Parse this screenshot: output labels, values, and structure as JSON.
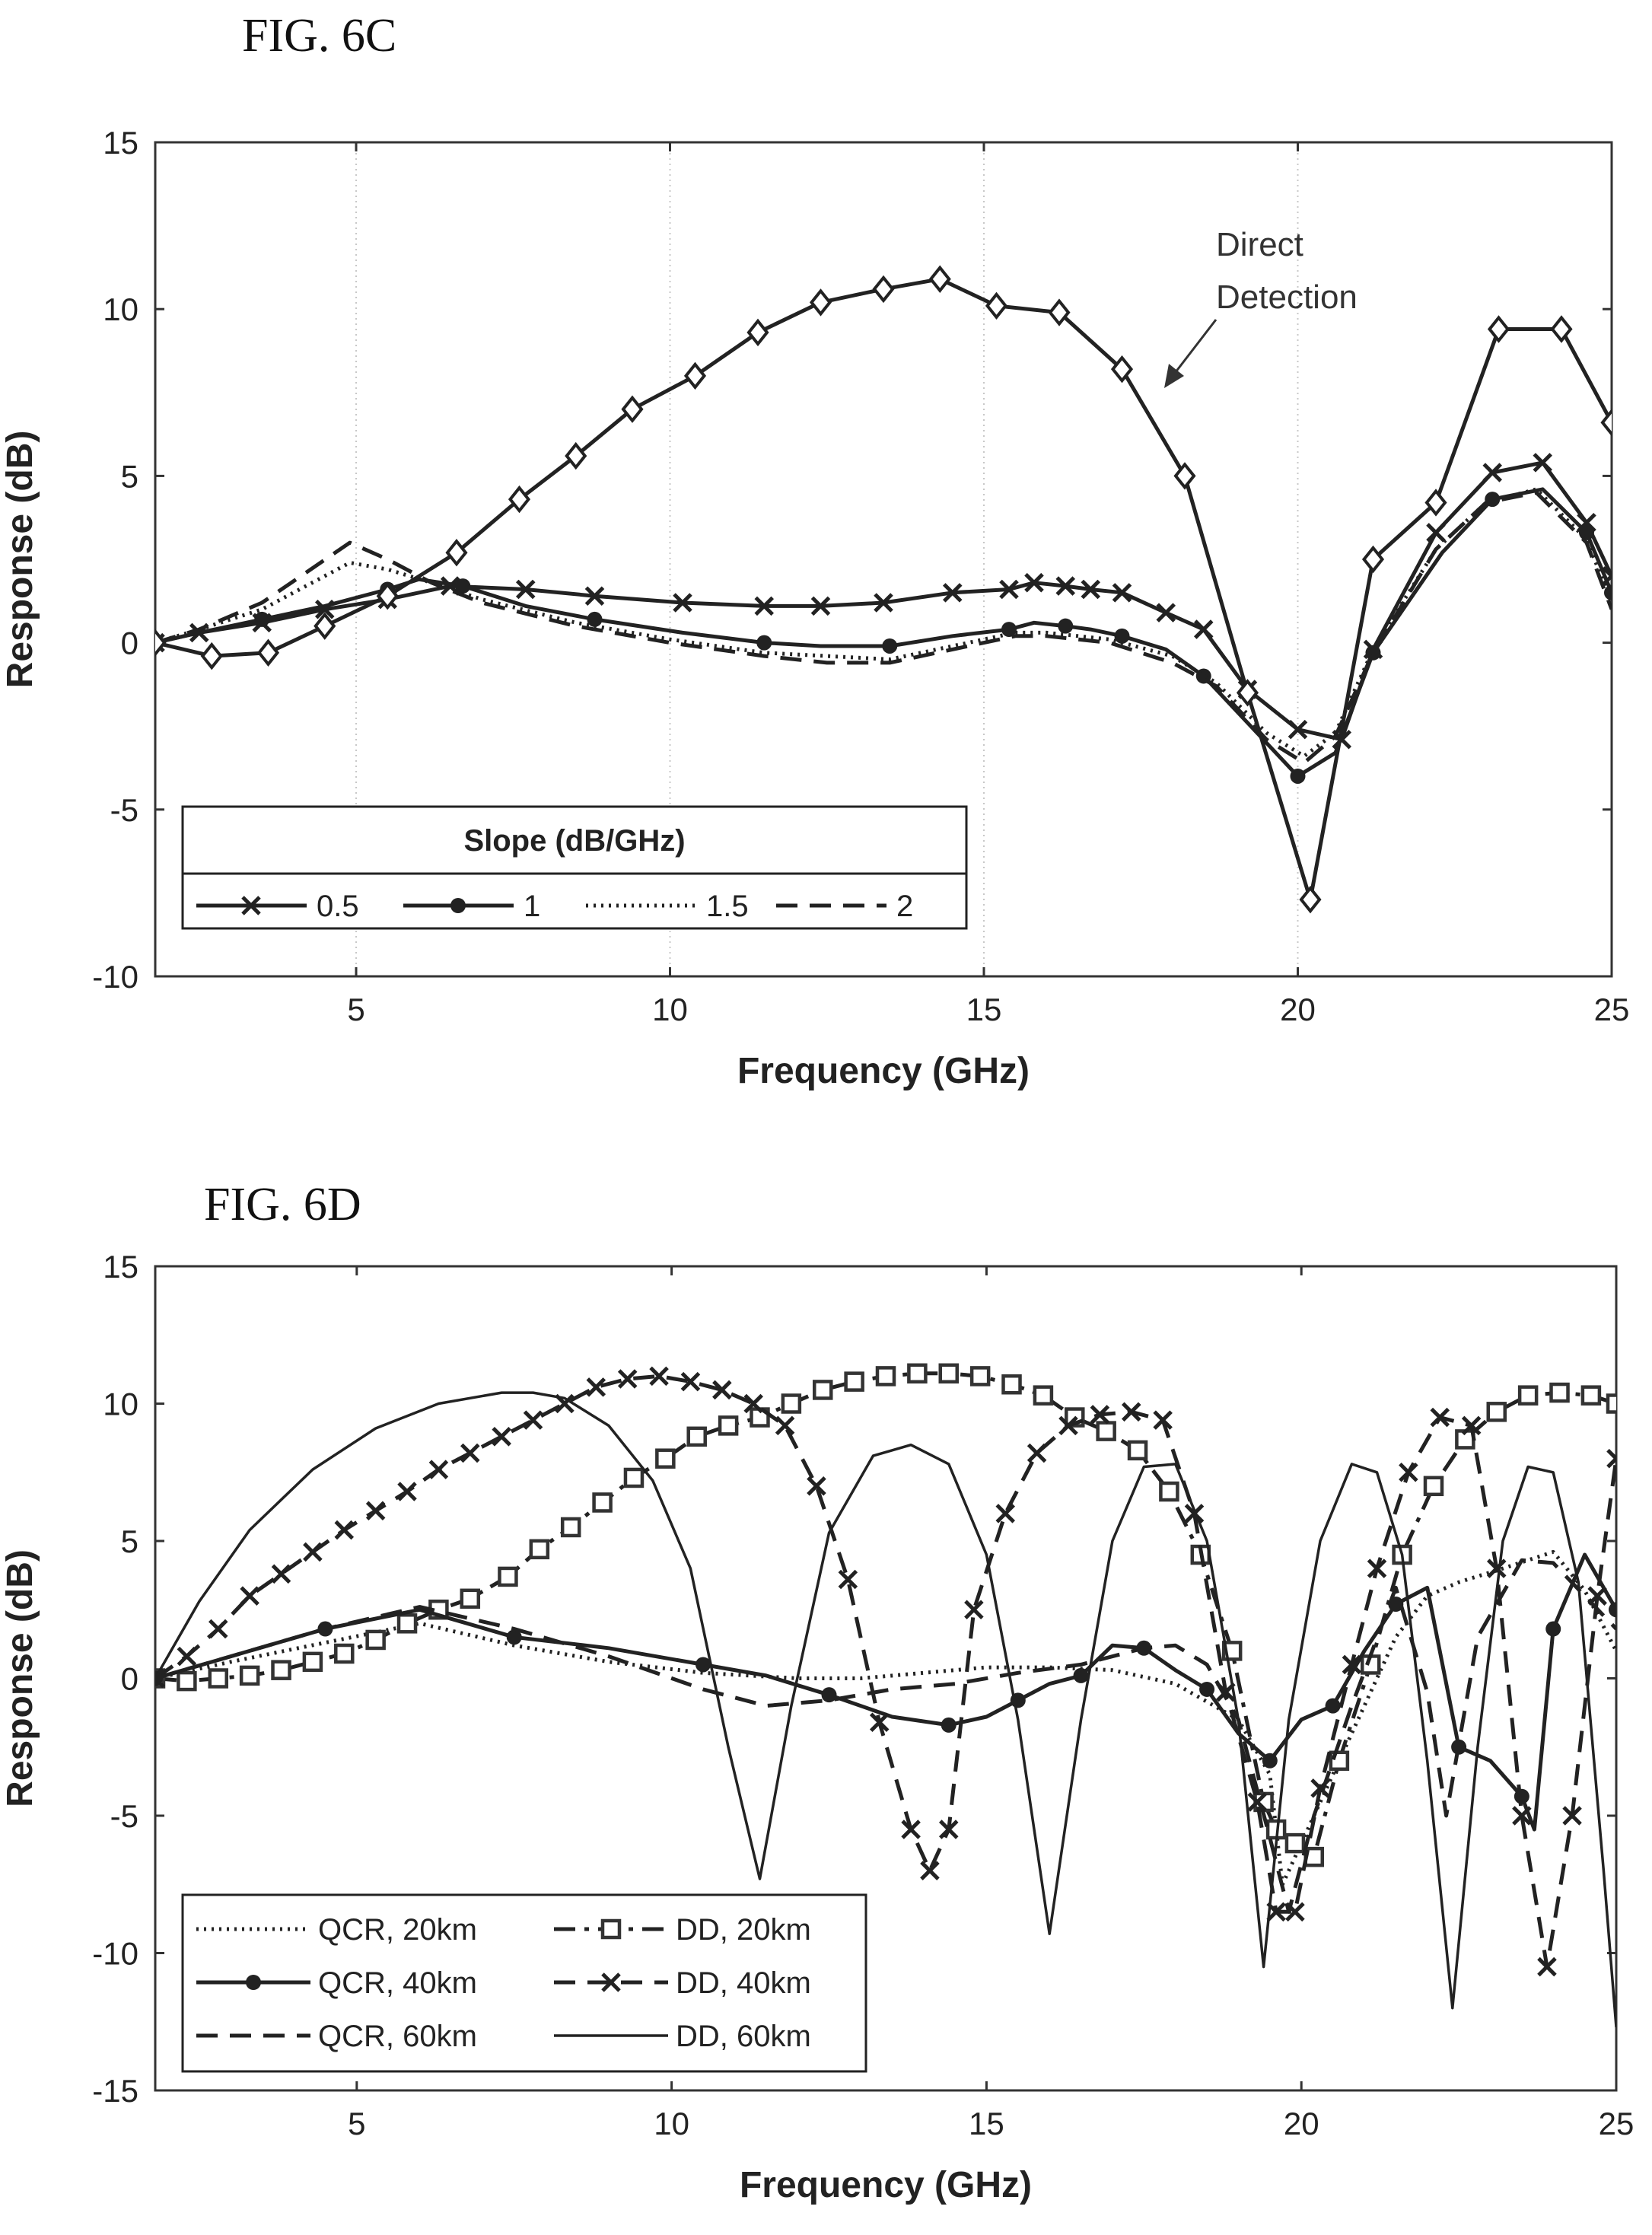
{
  "figures": {
    "c_label": "FIG. 6C",
    "d_label": "FIG. 6D"
  },
  "chart_data": [
    {
      "type": "line",
      "title": "",
      "xlabel": "Frequency (GHz)",
      "ylabel": "Response (dB)",
      "xlim": [
        1.8,
        25
      ],
      "ylim": [
        -10,
        15
      ],
      "xticks": [
        5,
        10,
        15,
        20,
        25
      ],
      "yticks": [
        -10,
        -5,
        0,
        5,
        10,
        15
      ],
      "grid": "vertical dotted",
      "legend": {
        "title": "Slope (dB/GHz)",
        "placement": "lower-left",
        "entries": [
          "0.5",
          "1",
          "1.5",
          "2"
        ]
      },
      "annotation": {
        "lines": [
          "Direct",
          "Detection"
        ]
      },
      "series": [
        {
          "name": "0.5",
          "style": "solid-x",
          "x": [
            1.8,
            2.5,
            3.5,
            4.5,
            5.5,
            6.5,
            7.7,
            8.8,
            10.2,
            11.5,
            12.4,
            13.4,
            14.5,
            15.4,
            15.8,
            16.3,
            16.7,
            17.2,
            17.9,
            18.5,
            19.2,
            20.0,
            20.7,
            21.2,
            22.2,
            23.1,
            23.9,
            24.6,
            25.0
          ],
          "y": [
            0,
            0.3,
            0.6,
            1.0,
            1.3,
            1.7,
            1.6,
            1.4,
            1.2,
            1.1,
            1.1,
            1.2,
            1.5,
            1.6,
            1.8,
            1.7,
            1.6,
            1.5,
            0.9,
            0.4,
            -1.4,
            -2.6,
            -2.9,
            -0.2,
            3.3,
            5.1,
            5.4,
            3.6,
            2.0
          ]
        },
        {
          "name": "1",
          "style": "solid-dot",
          "x": [
            1.8,
            2.5,
            3.5,
            4.5,
            5.5,
            6.0,
            6.7,
            7.7,
            8.8,
            10.2,
            11.5,
            12.4,
            13.5,
            14.5,
            15.4,
            15.8,
            16.3,
            16.7,
            17.2,
            17.9,
            18.5,
            19.2,
            20.0,
            20.6,
            21.2,
            22.3,
            23.1,
            23.9,
            24.6,
            25.0
          ],
          "y": [
            0,
            0.3,
            0.7,
            1.1,
            1.6,
            1.9,
            1.7,
            1.1,
            0.7,
            0.3,
            0.0,
            -0.1,
            -0.1,
            0.2,
            0.4,
            0.6,
            0.5,
            0.4,
            0.2,
            -0.2,
            -1.0,
            -2.4,
            -4.0,
            -3.3,
            -0.3,
            2.7,
            4.3,
            4.6,
            3.3,
            1.5
          ]
        },
        {
          "name": "1.5",
          "style": "dotted",
          "x": [
            1.8,
            2.5,
            3.5,
            4.9,
            5.5,
            6.2,
            7.0,
            8.5,
            10.0,
            11.5,
            12.5,
            13.5,
            14.5,
            15.5,
            16.0,
            16.5,
            17.0,
            18.0,
            18.7,
            19.5,
            20.1,
            20.6,
            21.2,
            22.2,
            23.0,
            23.8,
            24.6,
            25.0
          ],
          "y": [
            0,
            0.4,
            1.0,
            2.4,
            2.2,
            1.8,
            1.3,
            0.6,
            0.1,
            -0.3,
            -0.4,
            -0.5,
            -0.1,
            0.3,
            0.3,
            0.2,
            0.1,
            -0.4,
            -1.2,
            -2.7,
            -3.4,
            -2.7,
            -0.2,
            2.8,
            4.2,
            4.6,
            3.1,
            1.2
          ]
        },
        {
          "name": "2",
          "style": "dashed",
          "x": [
            1.8,
            2.5,
            3.5,
            4.9,
            5.5,
            6.2,
            7.0,
            8.5,
            10.0,
            11.5,
            12.5,
            13.5,
            14.5,
            15.5,
            16.0,
            16.5,
            17.0,
            18.0,
            18.7,
            19.5,
            20.1,
            20.6,
            21.2,
            22.2,
            23.0,
            23.8,
            24.6,
            25.0
          ],
          "y": [
            0,
            0.4,
            1.2,
            3.0,
            2.5,
            1.8,
            1.2,
            0.5,
            0.0,
            -0.4,
            -0.6,
            -0.6,
            -0.2,
            0.2,
            0.2,
            0.1,
            0.0,
            -0.6,
            -1.3,
            -2.9,
            -3.6,
            -2.8,
            -0.3,
            2.8,
            4.2,
            4.5,
            3.0,
            1.0
          ]
        },
        {
          "name": "Direct Detection",
          "style": "solid-diamond",
          "x": [
            1.8,
            2.7,
            3.6,
            4.5,
            5.5,
            6.6,
            7.6,
            8.5,
            9.4,
            10.4,
            11.4,
            12.4,
            13.4,
            14.3,
            15.2,
            16.2,
            17.2,
            18.2,
            19.2,
            20.2,
            21.2,
            22.2,
            23.2,
            24.2,
            25.0
          ],
          "y": [
            0,
            -0.4,
            -0.3,
            0.5,
            1.4,
            2.7,
            4.3,
            5.6,
            7.0,
            8.0,
            9.3,
            10.2,
            10.6,
            10.9,
            10.1,
            9.9,
            8.2,
            5.0,
            -1.5,
            -7.7,
            2.5,
            4.2,
            9.4,
            9.4,
            6.6
          ]
        }
      ]
    },
    {
      "type": "line",
      "title": "",
      "xlabel": "Frequency (GHz)",
      "ylabel": "Response (dB)",
      "xlim": [
        1.8,
        25
      ],
      "ylim": [
        -15,
        15
      ],
      "xticks": [
        5,
        10,
        15,
        20,
        25
      ],
      "yticks": [
        -15,
        -10,
        -5,
        0,
        5,
        10,
        15
      ],
      "grid": "none",
      "legend": {
        "placement": "lower-left",
        "entries": [
          "QCR, 20km",
          "DD, 20km",
          "QCR, 40km",
          "DD, 40km",
          "QCR, 60km",
          "DD, 60km"
        ]
      },
      "series": [
        {
          "name": "QCR, 20km",
          "style": "dotted",
          "x": [
            1.8,
            3,
            4.5,
            6,
            7.5,
            9,
            10.5,
            12,
            13,
            14,
            15,
            16,
            17,
            18,
            19,
            19.5,
            19.7,
            20.2,
            21,
            21.5,
            22,
            22.5,
            23.2,
            24,
            24.5,
            25
          ],
          "y": [
            0,
            0.6,
            1.3,
            2.0,
            1.2,
            0.6,
            0.2,
            0,
            0,
            0.2,
            0.4,
            0.4,
            0.3,
            -0.2,
            -1.5,
            -3.5,
            -7.5,
            -5,
            -1,
            1.5,
            3,
            3.5,
            4,
            4.6,
            3.2,
            1.0
          ]
        },
        {
          "name": "DD, 20km",
          "style": "dashdot-square",
          "x": [
            1.8,
            2.3,
            2.8,
            3.3,
            3.8,
            4.3,
            4.8,
            5.3,
            5.8,
            6.3,
            6.8,
            7.4,
            7.9,
            8.4,
            8.9,
            9.4,
            9.9,
            10.4,
            10.9,
            11.4,
            11.9,
            12.4,
            12.9,
            13.4,
            13.9,
            14.4,
            14.9,
            15.4,
            15.9,
            16.4,
            16.9,
            17.4,
            17.9,
            18.4,
            18.9,
            19.4,
            19.6,
            19.9,
            20.2,
            20.6,
            21.1,
            21.6,
            22.1,
            22.6,
            23.1,
            23.6,
            24.1,
            24.6,
            25.0
          ],
          "y": [
            0,
            -0.1,
            0,
            0.1,
            0.3,
            0.6,
            0.9,
            1.4,
            2.0,
            2.5,
            2.9,
            3.7,
            4.7,
            5.5,
            6.4,
            7.3,
            8.0,
            8.8,
            9.2,
            9.5,
            10,
            10.5,
            10.8,
            11,
            11.1,
            11.1,
            11,
            10.7,
            10.3,
            9.5,
            9.0,
            8.3,
            6.8,
            4.5,
            1.0,
            -4.5,
            -5.5,
            -6.0,
            -6.5,
            -3,
            0.5,
            4.5,
            7,
            8.7,
            9.7,
            10.3,
            10.4,
            10.3,
            10.0
          ]
        },
        {
          "name": "QCR, 40km",
          "style": "solid-dot",
          "x": [
            1.8,
            3,
            4.5,
            6,
            7.5,
            9,
            10.5,
            11.5,
            12.5,
            13.5,
            14.4,
            15,
            15.5,
            16,
            16.5,
            17,
            17.5,
            18,
            18.5,
            19,
            19.5,
            20,
            20.5,
            21,
            21.5,
            22,
            22.5,
            23,
            23.5,
            23.7,
            24,
            24.5,
            25
          ],
          "y": [
            0,
            0.8,
            1.8,
            2.5,
            1.5,
            1.1,
            0.5,
            0.1,
            -0.6,
            -1.4,
            -1.7,
            -1.4,
            -0.8,
            -0.2,
            0.1,
            1.2,
            1.1,
            0.3,
            -0.4,
            -2.0,
            -3.0,
            -1.5,
            -1,
            1,
            2.7,
            3.3,
            -2.5,
            -3.0,
            -4.3,
            -5.5,
            1.8,
            4.5,
            2.5
          ]
        },
        {
          "name": "DD, 40km",
          "style": "dashed-x",
          "x": [
            1.8,
            2.3,
            2.8,
            3.3,
            3.8,
            4.3,
            4.8,
            5.3,
            5.8,
            6.3,
            6.8,
            7.3,
            7.8,
            8.3,
            8.8,
            9.3,
            9.8,
            10.3,
            10.8,
            11.3,
            11.8,
            12.3,
            12.8,
            13.3,
            13.8,
            14.1,
            14.4,
            14.8,
            15.3,
            15.8,
            16.3,
            16.8,
            17.3,
            17.8,
            18.3,
            18.8,
            19.3,
            19.6,
            19.9,
            20.3,
            20.8,
            21.2,
            21.7,
            22.2,
            22.7,
            23.1,
            23.5,
            23.9,
            24.3,
            24.7,
            25.0
          ],
          "y": [
            0,
            0.8,
            1.8,
            3.0,
            3.8,
            4.6,
            5.4,
            6.1,
            6.8,
            7.6,
            8.2,
            8.8,
            9.4,
            10,
            10.6,
            10.9,
            11.0,
            10.8,
            10.5,
            10.0,
            9.2,
            7.0,
            3.6,
            -1.6,
            -5.5,
            -7,
            -5.5,
            2.5,
            6.0,
            8.2,
            9.2,
            9.6,
            9.7,
            9.4,
            6.0,
            -0.5,
            -4.5,
            -8.5,
            -8.5,
            -4,
            0.5,
            4.0,
            7.5,
            9.5,
            9.2,
            4,
            -5,
            -10.5,
            -5,
            3,
            8.0
          ]
        },
        {
          "name": "QCR, 60km",
          "style": "dashed",
          "x": [
            1.8,
            3,
            4.5,
            6,
            7.5,
            9,
            10.5,
            11.5,
            12.5,
            13.5,
            14.5,
            15.5,
            16.5,
            17.5,
            18,
            18.5,
            19,
            19.5,
            19.8,
            20.2,
            20.8,
            21.5,
            22,
            22.3,
            22.8,
            23.5,
            24,
            24.5,
            25
          ],
          "y": [
            0,
            0.8,
            1.8,
            2.6,
            1.8,
            0.8,
            -0.4,
            -1.0,
            -0.8,
            -0.4,
            -0.2,
            0.2,
            0.5,
            1.1,
            1.2,
            0.5,
            -1.5,
            -5.8,
            -8.5,
            -5,
            -1,
            3.3,
            -0.5,
            -5,
            1.5,
            4.3,
            4.2,
            3.0,
            1.8
          ]
        },
        {
          "name": "DD, 60km",
          "style": "solid-thin",
          "x": [
            1.8,
            2.5,
            3.3,
            4.3,
            5.3,
            6.3,
            7.3,
            7.8,
            8.3,
            9.0,
            9.7,
            10.3,
            10.9,
            11.4,
            11.9,
            12.5,
            13.2,
            13.8,
            14.4,
            15.0,
            15.5,
            16.0,
            16.5,
            17.0,
            17.5,
            18.0,
            18.5,
            19.0,
            19.4,
            19.8,
            20.3,
            20.8,
            21.2,
            21.6,
            22.0,
            22.4,
            22.8,
            23.2,
            23.6,
            24.0,
            24.4,
            24.8,
            25.0
          ],
          "y": [
            0,
            2.8,
            5.4,
            7.6,
            9.1,
            10.0,
            10.4,
            10.4,
            10.2,
            9.2,
            7.2,
            4.0,
            -2.5,
            -7.3,
            -1,
            5.3,
            8.1,
            8.5,
            7.8,
            4.5,
            -1.5,
            -9.3,
            -1.5,
            5.0,
            7.7,
            7.8,
            5.0,
            -1.5,
            -10.5,
            -1.5,
            5.0,
            7.8,
            7.5,
            4.5,
            -3,
            -12,
            -2.5,
            5,
            7.7,
            7.5,
            3.5,
            -7.0,
            -12.7
          ]
        }
      ]
    }
  ]
}
